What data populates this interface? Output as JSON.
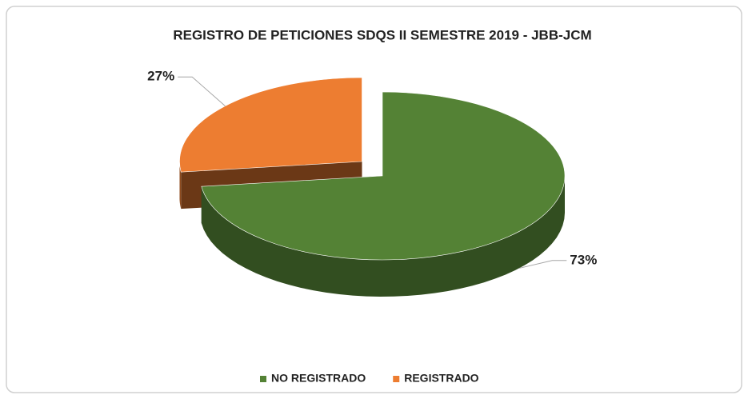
{
  "chart_data": {
    "type": "pie3d",
    "title": "REGISTRO DE PETICIONES SDQS II SEMESTRE 2019 - JBB-JCM",
    "categories": [
      "NO REGISTRADO",
      "REGISTRADO"
    ],
    "values": [
      73,
      27
    ],
    "value_labels": [
      "73%",
      "27%"
    ],
    "colors": [
      "#548235",
      "#ed7d31"
    ],
    "legend": "bottom"
  }
}
